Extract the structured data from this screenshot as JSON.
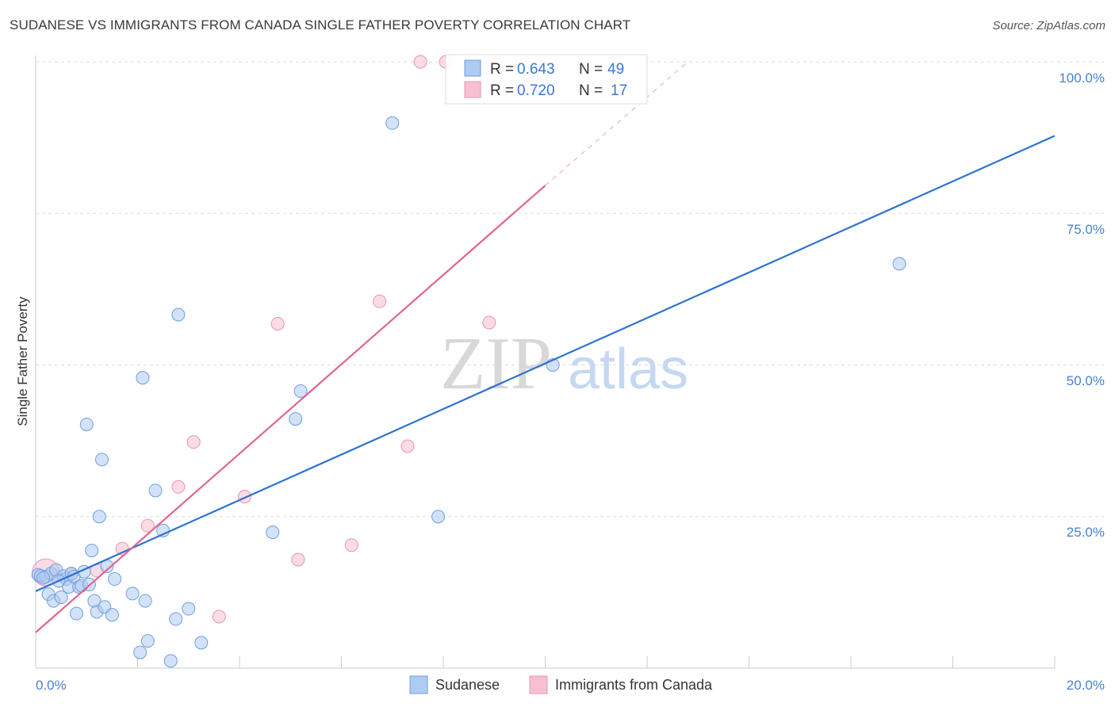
{
  "header": {
    "title": "SUDANESE VS IMMIGRANTS FROM CANADA SINGLE FATHER POVERTY CORRELATION CHART",
    "source": "Source: ZipAtlas.com"
  },
  "watermark": {
    "part1": "ZIP",
    "part2": "atlas"
  },
  "legend_top": {
    "rows": [
      {
        "r_label": "R =",
        "r_value": "0.643",
        "n_label": "N =",
        "n_value": "49"
      },
      {
        "r_label": "R =",
        "r_value": "0.720",
        "n_label": "N =",
        "n_value": "17"
      }
    ]
  },
  "legend_bottom": {
    "items": [
      "Sudanese",
      "Immigrants from Canada"
    ]
  },
  "chart_data": {
    "type": "scatter",
    "title": "SUDANESE VS IMMIGRANTS FROM CANADA SINGLE FATHER POVERTY CORRELATION CHART",
    "xlabel": "",
    "ylabel": "Single Father Poverty",
    "xlim": [
      0,
      20
    ],
    "ylim": [
      0,
      100
    ],
    "x_ticks": [
      "0.0%",
      "20.0%"
    ],
    "y_ticks": [
      "25.0%",
      "50.0%",
      "75.0%",
      "100.0%"
    ],
    "grid": true,
    "legend_position": "top-center",
    "colors": {
      "sudanese_fill": "#aecbf2",
      "sudanese_stroke": "#6e9fe0",
      "sudanese_line": "#2d72d2",
      "canada_fill": "#f7c0d2",
      "canada_stroke": "#eb92b2",
      "canada_line": "#e0658f"
    },
    "series": [
      {
        "name": "Sudanese",
        "r": 0.643,
        "n": 49,
        "trend": {
          "x": [
            0,
            20
          ],
          "y": [
            12.7,
            87.8
          ]
        },
        "points": [
          {
            "x": 0.05,
            "y": 15.4
          },
          {
            "x": 0.1,
            "y": 15.2
          },
          {
            "x": 0.2,
            "y": 15.1
          },
          {
            "x": 0.25,
            "y": 12.2
          },
          {
            "x": 0.3,
            "y": 15.6
          },
          {
            "x": 0.35,
            "y": 11.1
          },
          {
            "x": 0.4,
            "y": 16.2
          },
          {
            "x": 0.5,
            "y": 11.7
          },
          {
            "x": 0.55,
            "y": 15.2
          },
          {
            "x": 0.6,
            "y": 14.7
          },
          {
            "x": 0.65,
            "y": 13.4
          },
          {
            "x": 0.7,
            "y": 15.6
          },
          {
            "x": 0.75,
            "y": 15.1
          },
          {
            "x": 0.8,
            "y": 9.0
          },
          {
            "x": 0.85,
            "y": 13.4
          },
          {
            "x": 0.9,
            "y": 13.6
          },
          {
            "x": 0.95,
            "y": 15.9
          },
          {
            "x": 1.0,
            "y": 40.2
          },
          {
            "x": 1.05,
            "y": 13.8
          },
          {
            "x": 1.1,
            "y": 19.4
          },
          {
            "x": 1.15,
            "y": 11.1
          },
          {
            "x": 1.2,
            "y": 9.3
          },
          {
            "x": 1.25,
            "y": 25.0
          },
          {
            "x": 1.3,
            "y": 34.4
          },
          {
            "x": 1.35,
            "y": 10.1
          },
          {
            "x": 1.4,
            "y": 16.8
          },
          {
            "x": 1.5,
            "y": 8.8
          },
          {
            "x": 1.55,
            "y": 14.7
          },
          {
            "x": 1.9,
            "y": 12.3
          },
          {
            "x": 2.05,
            "y": 2.6
          },
          {
            "x": 2.1,
            "y": 47.9
          },
          {
            "x": 2.15,
            "y": 11.1
          },
          {
            "x": 2.2,
            "y": 4.5
          },
          {
            "x": 2.35,
            "y": 29.3
          },
          {
            "x": 2.5,
            "y": 22.7
          },
          {
            "x": 2.65,
            "y": 1.2
          },
          {
            "x": 2.75,
            "y": 8.1
          },
          {
            "x": 2.8,
            "y": 58.3
          },
          {
            "x": 3.0,
            "y": 9.8
          },
          {
            "x": 3.25,
            "y": 4.2
          },
          {
            "x": 4.65,
            "y": 22.4
          },
          {
            "x": 5.1,
            "y": 41.1
          },
          {
            "x": 5.2,
            "y": 45.7
          },
          {
            "x": 7.0,
            "y": 89.9
          },
          {
            "x": 7.9,
            "y": 25.0
          },
          {
            "x": 10.15,
            "y": 50.0
          },
          {
            "x": 16.95,
            "y": 66.7
          },
          {
            "x": 0.15,
            "y": 14.9
          },
          {
            "x": 0.45,
            "y": 14.4
          }
        ]
      },
      {
        "name": "Immigrants from Canada",
        "r": 0.72,
        "n": 17,
        "trend": {
          "x": [
            0,
            10
          ],
          "y": [
            5.9,
            79.6
          ]
        },
        "trend_dashed": {
          "x": [
            10,
            12.8
          ],
          "y": [
            79.6,
            100
          ]
        },
        "points": [
          {
            "x": 0.2,
            "y": 15.8
          },
          {
            "x": 0.7,
            "y": 15.5
          },
          {
            "x": 1.2,
            "y": 16.1
          },
          {
            "x": 1.7,
            "y": 19.7
          },
          {
            "x": 2.2,
            "y": 23.5
          },
          {
            "x": 2.8,
            "y": 29.9
          },
          {
            "x": 3.1,
            "y": 37.3
          },
          {
            "x": 3.6,
            "y": 8.5
          },
          {
            "x": 4.1,
            "y": 28.3
          },
          {
            "x": 4.75,
            "y": 56.8
          },
          {
            "x": 5.15,
            "y": 17.9
          },
          {
            "x": 6.2,
            "y": 20.3
          },
          {
            "x": 6.75,
            "y": 60.5
          },
          {
            "x": 7.3,
            "y": 36.6
          },
          {
            "x": 7.55,
            "y": 100.0
          },
          {
            "x": 8.05,
            "y": 100.0
          },
          {
            "x": 8.9,
            "y": 57.0
          }
        ]
      }
    ]
  }
}
